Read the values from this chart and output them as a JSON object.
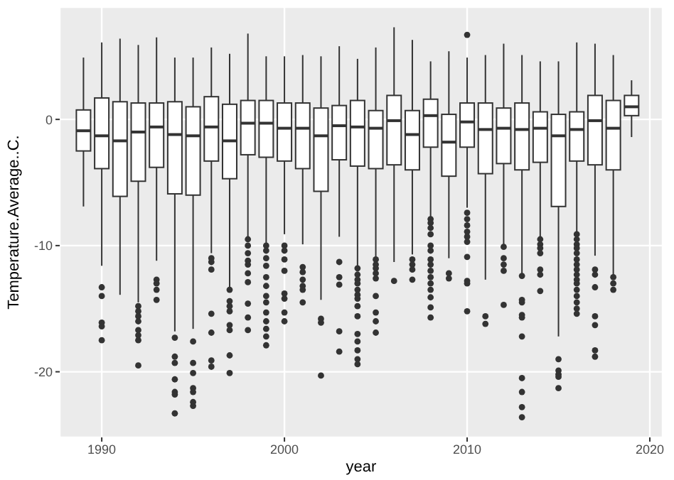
{
  "chart_data": {
    "type": "box",
    "xlabel": "year",
    "ylabel": "Temperature.Average..C.",
    "x": [
      1989,
      1990,
      1991,
      1992,
      1993,
      1994,
      1995,
      1996,
      1997,
      1998,
      1999,
      2000,
      2001,
      2002,
      2003,
      2004,
      2005,
      2006,
      2007,
      2008,
      2009,
      2010,
      2011,
      2012,
      2013,
      2014,
      2015,
      2016,
      2017,
      2018,
      2019
    ],
    "boxes": [
      {
        "low": -6.9,
        "q1": -2.5,
        "median": -0.9,
        "q3": 0.75,
        "high": 4.9
      },
      {
        "low": -11.6,
        "q1": -3.9,
        "median": -1.3,
        "q3": 1.7,
        "high": 6.1,
        "outliers": [
          -13.3,
          -14.0,
          -16.1,
          -16.4,
          -17.5
        ]
      },
      {
        "low": -13.9,
        "q1": -6.1,
        "median": -1.7,
        "q3": 1.4,
        "high": 6.4
      },
      {
        "low": -14.5,
        "q1": -4.9,
        "median": -1.0,
        "q3": 1.3,
        "high": 5.9,
        "outliers": [
          -14.8,
          -15.2,
          -15.6,
          -16.0,
          -16.7,
          -17.1,
          -17.5,
          -19.5
        ]
      },
      {
        "low": -11.2,
        "q1": -3.8,
        "median": -0.6,
        "q3": 1.3,
        "high": 6.5,
        "outliers": [
          -12.7,
          -13.0,
          -13.5,
          -14.3
        ]
      },
      {
        "low": -16.8,
        "q1": -5.9,
        "median": -1.2,
        "q3": 1.4,
        "high": 4.9,
        "outliers": [
          -17.3,
          -18.8,
          -19.3,
          -20.6,
          -21.6,
          -21.8,
          -23.3
        ]
      },
      {
        "low": -16.6,
        "q1": -6.0,
        "median": -1.3,
        "q3": 1.0,
        "high": 4.9,
        "outliers": [
          -17.6,
          -19.3,
          -20.1,
          -21.3,
          -21.6,
          -22.4,
          -22.7
        ]
      },
      {
        "low": -10.6,
        "q1": -3.3,
        "median": -0.6,
        "q3": 1.8,
        "high": 5.7,
        "outliers": [
          -11.0,
          -11.3,
          -11.9,
          -15.4,
          -16.9,
          -19.1,
          -19.6
        ]
      },
      {
        "low": -13.3,
        "q1": -4.7,
        "median": -1.7,
        "q3": 1.2,
        "high": 5.2,
        "outliers": [
          -13.5,
          -14.4,
          -14.8,
          -15.2,
          -16.3,
          -16.7,
          -18.7,
          -20.1
        ]
      },
      {
        "low": -9.3,
        "q1": -2.8,
        "median": -0.3,
        "q3": 1.5,
        "high": 6.8,
        "outliers": [
          -9.5,
          -10.0,
          -10.6,
          -11.2,
          -11.5,
          -12.2,
          -12.9,
          -14.6,
          -15.7,
          -16.7
        ]
      },
      {
        "low": -9.9,
        "q1": -3.0,
        "median": -0.3,
        "q3": 1.5,
        "high": 5.0,
        "outliers": [
          -10.0,
          -10.4,
          -11.0,
          -11.6,
          -12.5,
          -13.2,
          -14.0,
          -14.5,
          -15.3,
          -16.0,
          -16.6,
          -17.2,
          -17.9
        ]
      },
      {
        "low": -9.1,
        "q1": -3.3,
        "median": -0.7,
        "q3": 1.3,
        "high": 5.0,
        "outliers": [
          -10.0,
          -10.4,
          -11.1,
          -12.0,
          -13.8,
          -14.2,
          -15.3,
          -16.0
        ]
      },
      {
        "low": -9.9,
        "q1": -3.9,
        "median": -0.7,
        "q3": 1.3,
        "high": 5.1,
        "outliers": [
          -11.7,
          -12.1,
          -12.7,
          -13.2,
          -13.5,
          -14.5
        ]
      },
      {
        "low": -14.3,
        "q1": -5.7,
        "median": -1.3,
        "q3": 0.9,
        "high": 5.0,
        "outliers": [
          -15.8,
          -16.1,
          -20.3
        ]
      },
      {
        "low": -9.3,
        "q1": -3.2,
        "median": -0.5,
        "q3": 1.1,
        "high": 5.8,
        "outliers": [
          -11.3,
          -12.5,
          -13.1,
          -16.8,
          -18.4
        ]
      },
      {
        "low": -11.7,
        "q1": -3.7,
        "median": -0.6,
        "q3": 1.5,
        "high": 4.8,
        "outliers": [
          -11.8,
          -12.3,
          -12.7,
          -13.0,
          -13.5,
          -13.9,
          -14.2,
          -14.8,
          -15.6,
          -17.0,
          -17.6,
          -18.3,
          -19.0,
          -19.4
        ]
      },
      {
        "low": -10.9,
        "q1": -3.9,
        "median": -0.7,
        "q3": 0.7,
        "high": 5.7,
        "outliers": [
          -11.1,
          -11.5,
          -11.8,
          -12.2,
          -12.6,
          -14.0,
          -15.3,
          -16.0,
          -16.9
        ]
      },
      {
        "low": -11.3,
        "q1": -3.6,
        "median": -0.1,
        "q3": 1.9,
        "high": 7.3,
        "outliers": [
          -12.8
        ]
      },
      {
        "low": -10.7,
        "q1": -4.0,
        "median": -1.2,
        "q3": 0.7,
        "high": 6.3,
        "outliers": [
          -11.1,
          -11.5,
          -11.9,
          -12.7
        ]
      },
      {
        "low": -7.8,
        "q1": -2.2,
        "median": 0.3,
        "q3": 1.6,
        "high": 4.6,
        "outliers": [
          -7.9,
          -8.2,
          -8.6,
          -9.1,
          -10.0,
          -10.4,
          -11.1,
          -11.5,
          -12.0,
          -12.5,
          -13.0,
          -13.5,
          -14.1,
          -14.9,
          -15.7
        ]
      },
      {
        "low": -11.0,
        "q1": -4.5,
        "median": -1.8,
        "q3": 0.4,
        "high": 5.4,
        "outliers": [
          -12.2,
          -12.6
        ]
      },
      {
        "low": -7.0,
        "q1": -2.2,
        "median": -0.2,
        "q3": 1.3,
        "high": 4.9,
        "outliers": [
          6.7,
          -7.4,
          -7.9,
          -8.4,
          -8.9,
          -9.3,
          -9.7,
          -10.9,
          -12.8,
          -13.0,
          -15.2
        ]
      },
      {
        "low": -12.7,
        "q1": -4.3,
        "median": -0.8,
        "q3": 1.3,
        "high": 5.1,
        "outliers": [
          -15.6,
          -16.2
        ]
      },
      {
        "low": -10.0,
        "q1": -3.5,
        "median": -0.7,
        "q3": 0.9,
        "high": 6.0,
        "outliers": [
          -10.1,
          -11.0,
          -11.5,
          -12.0,
          -14.7
        ]
      },
      {
        "low": -12.3,
        "q1": -4.0,
        "median": -0.8,
        "q3": 1.3,
        "high": 5.1,
        "outliers": [
          -12.4,
          -14.3,
          -14.5,
          -15.5,
          -15.7,
          -17.2,
          -20.5,
          -21.6,
          -22.8,
          -23.6
        ]
      },
      {
        "low": -9.3,
        "q1": -3.4,
        "median": -0.7,
        "q3": 0.6,
        "high": 4.6,
        "outliers": [
          -9.5,
          -9.9,
          -10.2,
          -10.6,
          -11.9,
          -12.3,
          -13.6
        ]
      },
      {
        "low": -17.2,
        "q1": -6.9,
        "median": -1.3,
        "q3": 0.4,
        "high": 4.6,
        "outliers": [
          -19.0,
          -19.9,
          -20.2,
          -20.4,
          -21.3
        ]
      },
      {
        "low": -8.9,
        "q1": -3.3,
        "median": -0.8,
        "q3": 0.6,
        "high": 6.1,
        "outliers": [
          -9.1,
          -9.5,
          -9.9,
          -10.2,
          -10.6,
          -11.1,
          -11.5,
          -11.9,
          -12.3,
          -12.7,
          -13.0,
          -13.5,
          -14.0,
          -14.5,
          -15.0,
          -15.4
        ]
      },
      {
        "low": -10.8,
        "q1": -3.6,
        "median": -0.1,
        "q3": 1.9,
        "high": 6.0,
        "outliers": [
          -11.9,
          -12.3,
          -13.3,
          -15.6,
          -16.3,
          -18.3,
          -18.8
        ]
      },
      {
        "low": -12.5,
        "q1": -4.0,
        "median": -0.7,
        "q3": 1.5,
        "high": 5.1,
        "outliers": [
          -12.5,
          -13.0,
          -13.5
        ]
      },
      {
        "low": -1.4,
        "q1": 0.3,
        "median": 1.0,
        "q3": 1.9,
        "high": 3.1
      }
    ],
    "xlim": [
      1987.7,
      2020.7
    ],
    "ylim": [
      -25.2,
      8.9
    ],
    "xticks": [
      1990,
      2000,
      2010,
      2020
    ],
    "yticks": [
      -20,
      -10,
      0
    ],
    "grid": true
  }
}
